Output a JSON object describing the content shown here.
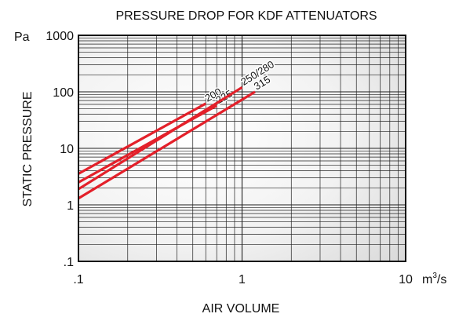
{
  "chart_data": {
    "type": "line",
    "title": "PRESSURE DROP FOR KDF ATTENUATORS",
    "xlabel": "AIR VOLUME",
    "ylabel": "STATIC PRESSURE",
    "x_unit": "m³/s",
    "y_unit": "Pa",
    "x_scale": "log",
    "y_scale": "log",
    "xlim": [
      0.1,
      10
    ],
    "ylim": [
      0.1,
      1000
    ],
    "x_ticks": [
      ".1",
      "1",
      "10"
    ],
    "y_ticks": [
      ".1",
      "1",
      "10",
      "100",
      "1000"
    ],
    "grid": true,
    "line_color": "#e3202a",
    "series": [
      {
        "name": "200",
        "x": [
          0.1,
          0.6
        ],
        "y": [
          3.55,
          62
        ]
      },
      {
        "name": "225",
        "x": [
          0.1,
          0.7
        ],
        "y": [
          2.5,
          57
        ]
      },
      {
        "name": "250/280",
        "x": [
          0.1,
          1.0
        ],
        "y": [
          1.9,
          120
        ]
      },
      {
        "name": "315",
        "x": [
          0.1,
          1.2
        ],
        "y": [
          1.3,
          100
        ]
      }
    ]
  }
}
